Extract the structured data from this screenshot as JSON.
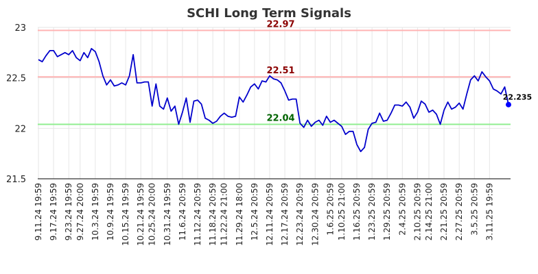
{
  "chart_data": {
    "type": "line",
    "title": "SCHI Long Term Signals",
    "ylim": [
      21.5,
      23
    ],
    "yticks": [
      {
        "value": 21.5,
        "label": "21.5"
      },
      {
        "value": 22,
        "label": "22"
      },
      {
        "value": 22.5,
        "label": "22.5"
      },
      {
        "value": 23,
        "label": "23"
      }
    ],
    "xtick_labels": [
      "9.11.24 19:59",
      "9.17.24 19:59",
      "9.23.24 19:59",
      "9.27.24 20:00",
      "10.3.24 19:59",
      "10.9.24 19:59",
      "10.15.24 19:59",
      "10.21.24 19:59",
      "10.25.24 20:00",
      "10.31.24 19:59",
      "11.6.24 20:59",
      "11.12.24 20:59",
      "11.18.24 20:59",
      "11.22.24 21:00",
      "11.29.24 18:00",
      "12.5.24 20:59",
      "12.11.24 20:59",
      "12.17.24 20:59",
      "12.23.24 20:59",
      "12.30.24 20:59",
      "1.6.25 20:59",
      "1.10.25 21:00",
      "1.16.25 20:59",
      "1.23.25 20:59",
      "1.29.25 20:59",
      "2.4.25 20:59",
      "2.10.25 20:59",
      "2.14.25 21:00",
      "2.21.25 20:59",
      "2.27.25 20:59",
      "3.5.25 20:59",
      "3.11.25 19:59"
    ],
    "xtick_positions": [
      0,
      4,
      8,
      11,
      15,
      19,
      23,
      27,
      30,
      34,
      38,
      42,
      46,
      49,
      53,
      57,
      61,
      65,
      69,
      73,
      77,
      80,
      84,
      88,
      92,
      96,
      100,
      103,
      107,
      111,
      115,
      119
    ],
    "reference_lines": [
      {
        "value": 22.97,
        "label": "22.97",
        "color": "#ffb3b3",
        "label_color": "#8b0000"
      },
      {
        "value": 22.51,
        "label": "22.51",
        "color": "#ffb3b3",
        "label_color": "#8b0000"
      },
      {
        "value": 22.04,
        "label": "22.04",
        "color": "#90ee90",
        "label_color": "#006400"
      }
    ],
    "series": [
      {
        "color": "#0000cc",
        "values": [
          22.68,
          22.66,
          22.72,
          22.77,
          22.77,
          22.71,
          22.73,
          22.75,
          22.73,
          22.77,
          22.7,
          22.67,
          22.75,
          22.7,
          22.79,
          22.76,
          22.66,
          22.52,
          22.43,
          22.48,
          22.42,
          22.43,
          22.45,
          22.43,
          22.52,
          22.73,
          22.45,
          22.45,
          22.46,
          22.46,
          22.22,
          22.44,
          22.22,
          22.19,
          22.3,
          22.17,
          22.22,
          22.04,
          22.16,
          22.3,
          22.06,
          22.27,
          22.28,
          22.24,
          22.1,
          22.08,
          22.05,
          22.07,
          22.12,
          22.15,
          22.12,
          22.11,
          22.12,
          22.31,
          22.26,
          22.33,
          22.41,
          22.44,
          22.39,
          22.47,
          22.46,
          22.52,
          22.49,
          22.48,
          22.45,
          22.37,
          22.28,
          22.29,
          22.29,
          22.05,
          22.01,
          22.08,
          22.02,
          22.06,
          22.08,
          22.03,
          22.12,
          22.06,
          22.08,
          22.05,
          22.02,
          21.94,
          21.97,
          21.97,
          21.84,
          21.77,
          21.81,
          21.99,
          22.05,
          22.06,
          22.15,
          22.07,
          22.08,
          22.15,
          22.23,
          22.23,
          22.22,
          22.26,
          22.21,
          22.1,
          22.16,
          22.27,
          22.24,
          22.16,
          22.18,
          22.14,
          22.04,
          22.18,
          22.26,
          22.19,
          22.21,
          22.25,
          22.19,
          22.34,
          22.48,
          22.52,
          22.47,
          22.56,
          22.51,
          22.47,
          22.39,
          22.37,
          22.34,
          22.41,
          22.235
        ]
      }
    ],
    "last_point": {
      "value": 22.235,
      "label": "22.235",
      "color": "#0000ff"
    },
    "grid": true,
    "legend": "none"
  }
}
